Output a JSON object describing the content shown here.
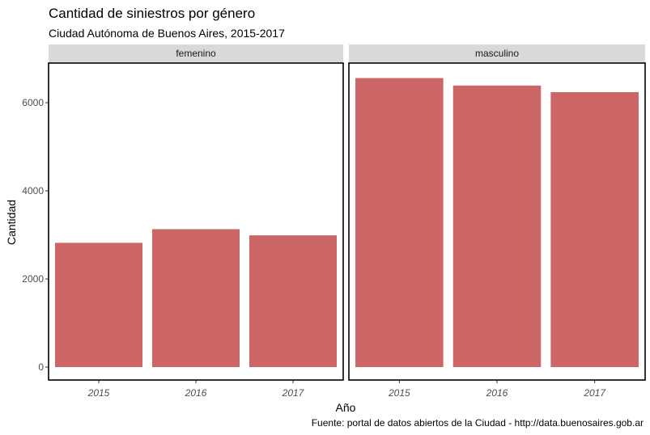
{
  "chart_data": {
    "type": "bar",
    "title": "Cantidad de siniestros por género",
    "subtitle": "Ciudad Autónoma de Buenos Aires, 2015-2017",
    "xlabel": "Año",
    "ylabel": "Cantidad",
    "caption": "Fuente: portal de datos abiertos de la Ciudad - http://data.buenosaires.gob.ar",
    "categories": [
      "2015",
      "2016",
      "2017"
    ],
    "ylim": [
      0,
      6900
    ],
    "yticks": [
      0,
      2000,
      4000,
      6000
    ],
    "grid": false,
    "bar_color": "#cd6666",
    "strip_color": "#d9d9d9",
    "panels": [
      {
        "name": "femenino",
        "values": [
          2820,
          3130,
          2990
        ]
      },
      {
        "name": "masculino",
        "values": [
          6560,
          6390,
          6240
        ]
      }
    ]
  }
}
